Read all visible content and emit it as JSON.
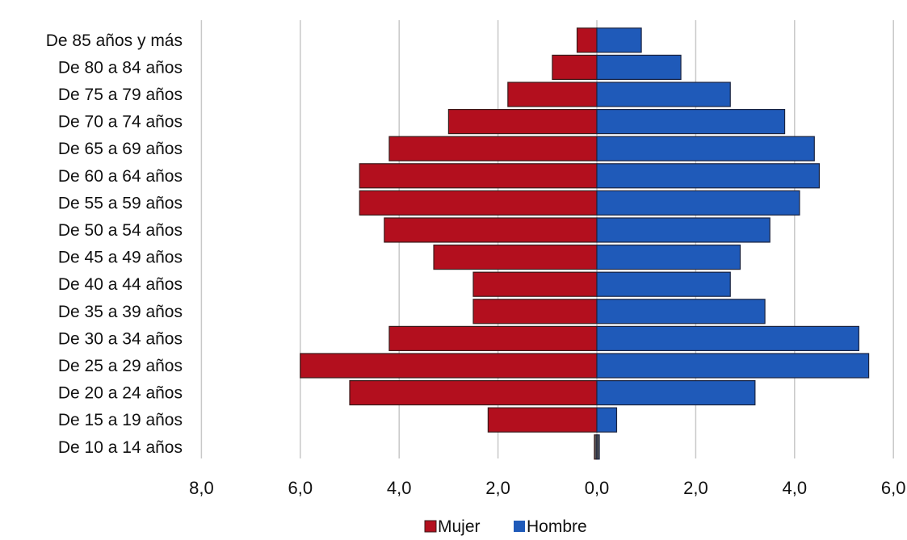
{
  "chart_data": {
    "type": "bar",
    "orientation": "horizontal",
    "layout": "population-pyramid",
    "categories": [
      "De 85 años y más",
      "De 80 a 84 años",
      "De 75 a 79 años",
      "De 70 a 74 años",
      "De 65 a 69 años",
      "De 60 a 64 años",
      "De 55 a 59 años",
      "De 50 a 54 años",
      "De 45 a 49 años",
      "De 40 a 44 años",
      "De 35 a 39 años",
      "De 30 a 34 años",
      "De 25 a 29 años",
      "De 20 a 24 años",
      "De 15 a 19 años",
      "De 10 a 14 años"
    ],
    "series": [
      {
        "name": "Mujer",
        "color": "#b30f1e",
        "values": [
          0.4,
          0.9,
          1.8,
          3.0,
          4.2,
          4.8,
          4.8,
          4.3,
          3.3,
          2.5,
          2.5,
          4.2,
          6.0,
          5.0,
          2.2,
          0.05
        ]
      },
      {
        "name": "Hombre",
        "color": "#1f5ab9",
        "values": [
          0.9,
          1.7,
          2.7,
          3.8,
          4.4,
          4.5,
          4.1,
          3.5,
          2.9,
          2.7,
          3.4,
          5.3,
          5.5,
          3.2,
          0.4,
          0.05
        ]
      }
    ],
    "xlim": [
      -8.0,
      6.0
    ],
    "xticks": [
      "8,0",
      "6,0",
      "4,0",
      "2,0",
      "0,0",
      "2,0",
      "4,0",
      "6,0"
    ],
    "xlabel": "",
    "ylabel": "",
    "title": "",
    "grid": "vertical",
    "legend": {
      "position": "bottom-center",
      "entries": [
        "Mujer",
        "Hombre"
      ]
    }
  }
}
